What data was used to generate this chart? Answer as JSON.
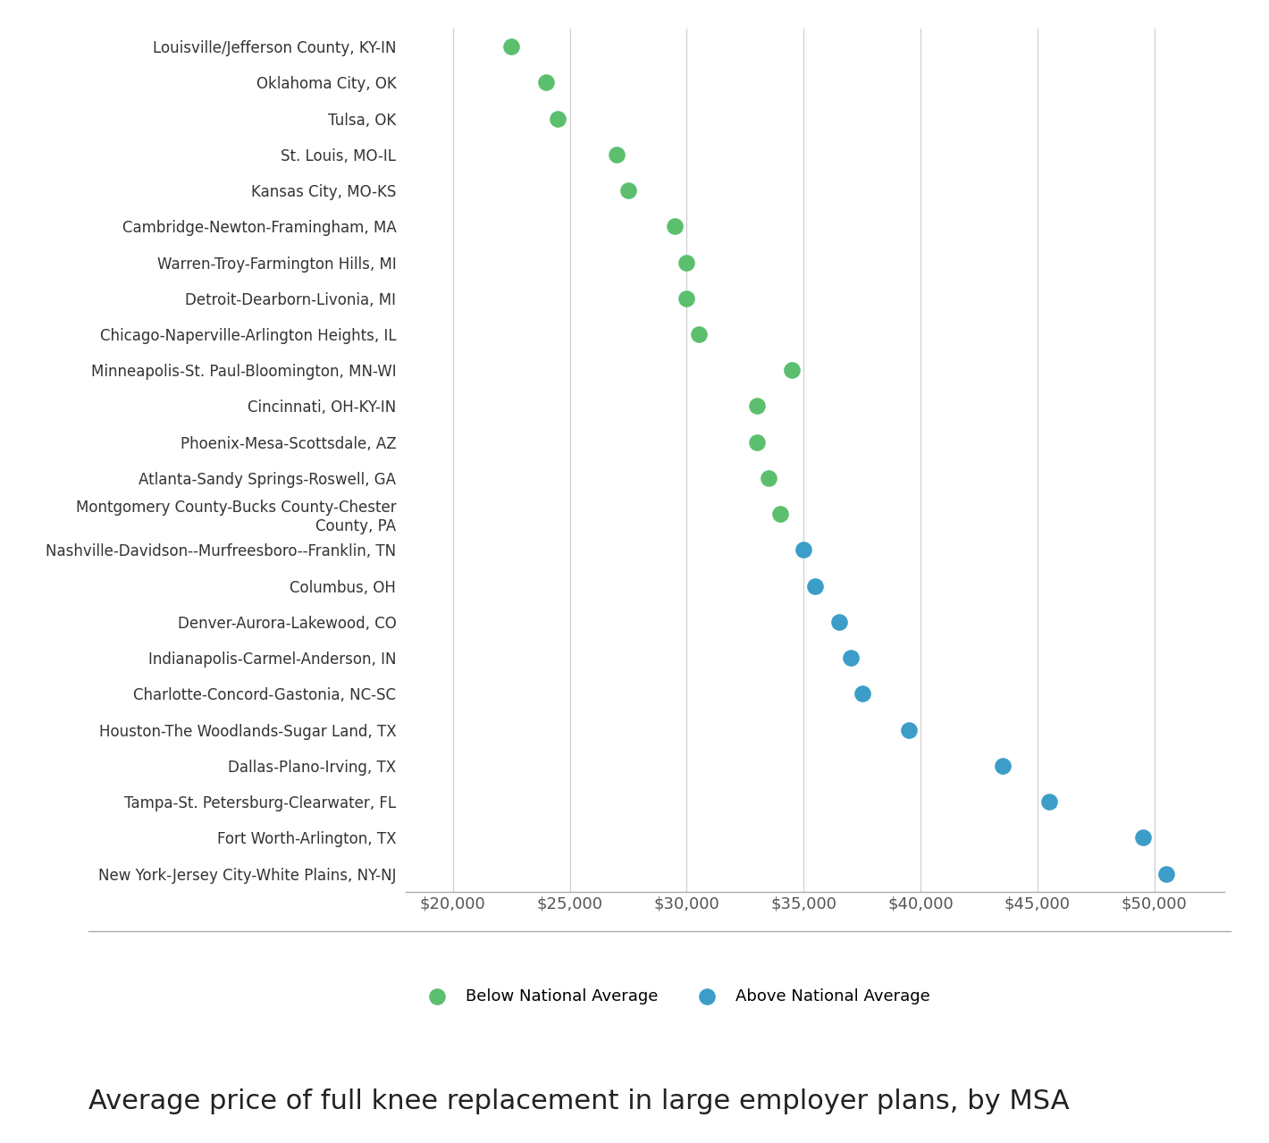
{
  "categories": [
    "Louisville/Jefferson County, KY-IN",
    "Oklahoma City, OK",
    "Tulsa, OK",
    "St. Louis, MO-IL",
    "Kansas City, MO-KS",
    "Cambridge-Newton-Framingham, MA",
    "Warren-Troy-Farmington Hills, MI",
    "Detroit-Dearborn-Livonia, MI",
    "Chicago-Naperville-Arlington Heights, IL",
    "Minneapolis-St. Paul-Bloomington, MN-WI",
    "Cincinnati, OH-KY-IN",
    "Phoenix-Mesa-Scottsdale, AZ",
    "Atlanta-Sandy Springs-Roswell, GA",
    "Montgomery County-Bucks County-Chester\nCounty, PA",
    "Nashville-Davidson--Murfreesboro--Franklin, TN",
    "Columbus, OH",
    "Denver-Aurora-Lakewood, CO",
    "Indianapolis-Carmel-Anderson, IN",
    "Charlotte-Concord-Gastonia, NC-SC",
    "Houston-The Woodlands-Sugar Land, TX",
    "Dallas-Plano-Irving, TX",
    "Tampa-St. Petersburg-Clearwater, FL",
    "Fort Worth-Arlington, TX",
    "New York-Jersey City-White Plains, NY-NJ"
  ],
  "values": [
    22500,
    24000,
    24500,
    27000,
    27500,
    29500,
    30000,
    30000,
    30500,
    34500,
    33000,
    33000,
    33500,
    34000,
    35000,
    35500,
    36500,
    37000,
    37500,
    39500,
    43500,
    45500,
    49500,
    50500
  ],
  "above_avg": [
    false,
    false,
    false,
    false,
    false,
    false,
    false,
    false,
    false,
    false,
    false,
    false,
    false,
    false,
    true,
    true,
    true,
    true,
    true,
    true,
    true,
    true,
    true,
    true
  ],
  "color_above": "#3b9dc8",
  "color_below": "#5bbf6e",
  "bg_color": "#ffffff",
  "grid_color": "#cccccc",
  "title": "Average price of full knee replacement in large employer plans, by MSA",
  "title_fontsize": 22,
  "xlim": [
    18000,
    53000
  ],
  "xticks": [
    20000,
    25000,
    30000,
    35000,
    40000,
    45000,
    50000
  ],
  "xtick_labels": [
    "$20,000",
    "$25,000",
    "$30,000",
    "$35,000",
    "$40,000",
    "$45,000",
    "$50,000"
  ],
  "legend_below_label": "Below National Average",
  "legend_above_label": "Above National Average",
  "dot_size": 180
}
